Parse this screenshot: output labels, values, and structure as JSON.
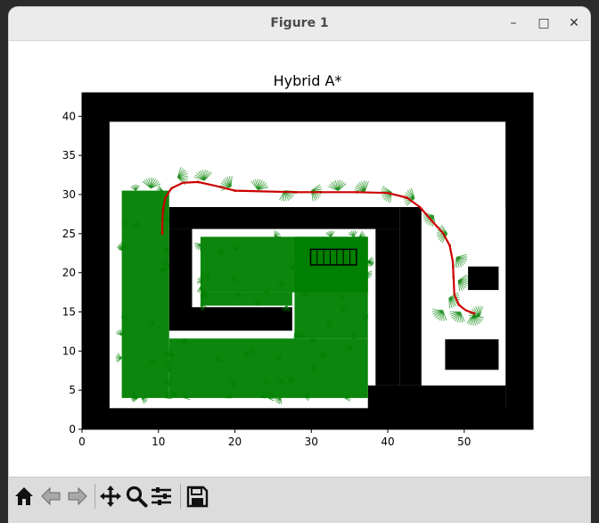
{
  "window": {
    "title": "Figure 1",
    "minimize_glyph": "–",
    "maximize_glyph": "□",
    "close_glyph": "✕"
  },
  "chart_data": {
    "type": "scatter",
    "title": "Hybrid A*",
    "xlabel": "",
    "ylabel": "",
    "xlim": [
      0,
      59
    ],
    "ylim": [
      0,
      43
    ],
    "x_ticks": [
      0,
      10,
      20,
      30,
      40,
      50
    ],
    "y_ticks": [
      0,
      5,
      10,
      15,
      20,
      25,
      30,
      35,
      40
    ],
    "obstacles": [
      {
        "x0": 0,
        "x1": 59,
        "y0": 0,
        "y1": 2.7
      },
      {
        "x0": 0,
        "x1": 59,
        "y0": 39.3,
        "y1": 43
      },
      {
        "x0": 0,
        "x1": 3.6,
        "y0": 0,
        "y1": 43
      },
      {
        "x0": 55.4,
        "x1": 59,
        "y0": 0,
        "y1": 43
      },
      {
        "x0": 37.4,
        "x1": 55.4,
        "y0": 0,
        "y1": 5.6
      },
      {
        "x0": 41.6,
        "x1": 55.4,
        "y0": 5.6,
        "y1": 28.4
      },
      {
        "x0": 11.4,
        "x1": 41.6,
        "y0": 25.6,
        "y1": 28.4
      },
      {
        "x0": 11.4,
        "x1": 14.4,
        "y0": 12.6,
        "y1": 25.6
      },
      {
        "x0": 14.4,
        "x1": 27.5,
        "y0": 12.6,
        "y1": 15.6
      },
      {
        "x0": 38.4,
        "x1": 41.6,
        "y0": 5.6,
        "y1": 25.6
      }
    ],
    "free_areas": [
      {
        "x0": 44.4,
        "x1": 55.4,
        "y0": 5.6,
        "y1": 28.4
      }
    ],
    "inner_obstacles": [
      {
        "x0": 50.5,
        "x1": 54.5,
        "y0": 17.8,
        "y1": 20.8
      },
      {
        "x0": 47.5,
        "x1": 54.5,
        "y0": 7.6,
        "y1": 11.5
      }
    ],
    "explored_regions": [
      {
        "x0": 5.2,
        "x1": 11.4,
        "y0": 4.0,
        "y1": 30.5
      },
      {
        "x0": 11.4,
        "x1": 37.4,
        "y0": 4.0,
        "y1": 11.6
      },
      {
        "x0": 27.8,
        "x1": 37.4,
        "y0": 11.6,
        "y1": 24.6
      },
      {
        "x0": 15.5,
        "x1": 37.4,
        "y0": 17.5,
        "y1": 24.6
      },
      {
        "x0": 15.5,
        "x1": 27.5,
        "y0": 15.8,
        "y1": 17.5
      }
    ],
    "explored_arc_points": [
      [
        9.0,
        30.8
      ],
      [
        12.5,
        32.2
      ],
      [
        16.0,
        31.8
      ],
      [
        19.5,
        31.0
      ],
      [
        23.0,
        30.6
      ],
      [
        26.5,
        30.5
      ],
      [
        30.0,
        30.5
      ],
      [
        33.5,
        30.5
      ],
      [
        37.0,
        30.4
      ],
      [
        40.5,
        30.3
      ],
      [
        43.5,
        29.5
      ],
      [
        46.0,
        27.3
      ],
      [
        47.8,
        25.0
      ],
      [
        49.0,
        22.0
      ],
      [
        49.2,
        19.0
      ],
      [
        48.0,
        16.8
      ],
      [
        47.2,
        15.2
      ],
      [
        49.5,
        15.0
      ],
      [
        51.2,
        14.6
      ],
      [
        52.0,
        14.4
      ]
    ],
    "path_x": [
      51.3,
      50.2,
      49.3,
      48.7,
      48.6,
      48.5,
      48.1,
      47.2,
      45.8,
      44.2,
      42.5,
      40.0,
      36.0,
      32.0,
      28.0,
      24.0,
      20.0,
      17.5,
      15.2,
      13.2,
      11.7,
      10.9,
      10.6,
      10.5,
      10.5
    ],
    "path_y": [
      14.8,
      15.2,
      15.9,
      17.2,
      19.5,
      21.5,
      23.5,
      25.1,
      26.6,
      28.4,
      29.6,
      30.2,
      30.3,
      30.3,
      30.3,
      30.4,
      30.5,
      31.1,
      31.6,
      31.5,
      30.8,
      29.6,
      28.0,
      26.5,
      25.0
    ],
    "vehicle": {
      "x0": 29.9,
      "x1": 35.9,
      "y0": 21.0,
      "y1": 23.0
    },
    "colors": {
      "obstacle": "#000000",
      "explored": "#008000",
      "path": "#cc0000",
      "free": "#ffffff"
    }
  },
  "toolbar": {
    "icons": [
      "home-icon",
      "back-arrow-icon",
      "forward-arrow-icon",
      "pan-icon",
      "zoom-icon",
      "configure-icon",
      "save-icon"
    ]
  }
}
